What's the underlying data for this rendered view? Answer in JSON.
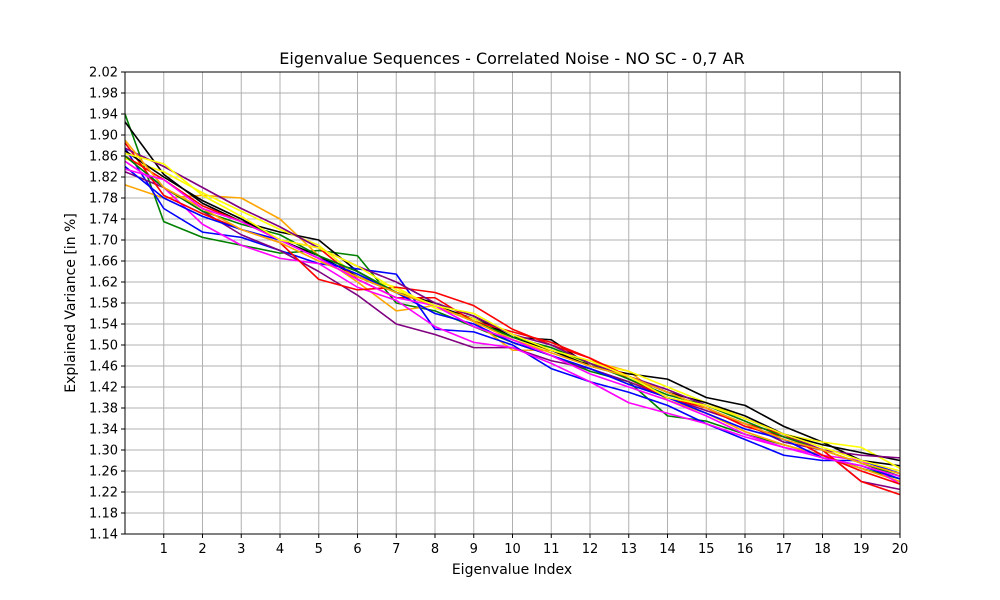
{
  "chart_data": {
    "type": "line",
    "title": "Eigenvalue Sequences - Correlated Noise - NO SC - 0,7 AR",
    "xlabel": "Eigenvalue Index",
    "ylabel": "Explained Variance [in %]",
    "xlim": [
      0,
      20
    ],
    "ylim": [
      1.14,
      2.02
    ],
    "x": [
      0,
      1,
      2,
      3,
      4,
      5,
      6,
      7,
      8,
      9,
      10,
      11,
      12,
      13,
      14,
      15,
      16,
      17,
      18,
      19,
      20
    ],
    "x_tick_labels": [
      "1",
      "2",
      "3",
      "4",
      "5",
      "6",
      "7",
      "8",
      "9",
      "10",
      "11",
      "12",
      "13",
      "14",
      "15",
      "16",
      "17",
      "18",
      "19",
      "20"
    ],
    "y_tick_labels": [
      "1.14",
      "1.18",
      "1.22",
      "1.26",
      "1.30",
      "1.34",
      "1.38",
      "1.42",
      "1.46",
      "1.50",
      "1.54",
      "1.58",
      "1.62",
      "1.66",
      "1.70",
      "1.74",
      "1.78",
      "1.82",
      "1.86",
      "1.90",
      "1.94",
      "1.98",
      "2.02"
    ],
    "grid": true,
    "legend": "none",
    "series": [
      {
        "color": "#008000",
        "values": [
          1.94,
          1.735,
          1.705,
          1.69,
          1.675,
          1.68,
          1.67,
          1.58,
          1.565,
          1.535,
          1.505,
          1.48,
          1.45,
          1.43,
          1.365,
          1.355,
          1.33,
          1.31,
          1.29,
          1.265,
          1.245
        ]
      },
      {
        "color": "#ffa500",
        "values": [
          1.805,
          1.78,
          1.785,
          1.78,
          1.74,
          1.67,
          1.62,
          1.565,
          1.575,
          1.545,
          1.49,
          1.49,
          1.47,
          1.45,
          1.395,
          1.37,
          1.335,
          1.31,
          1.29,
          1.265,
          1.24
        ]
      },
      {
        "color": "#000000",
        "values": [
          1.925,
          1.825,
          1.77,
          1.735,
          1.715,
          1.7,
          1.64,
          1.6,
          1.575,
          1.55,
          1.515,
          1.51,
          1.46,
          1.445,
          1.435,
          1.4,
          1.385,
          1.345,
          1.315,
          1.28,
          1.27
        ]
      },
      {
        "color": "#0000ff",
        "values": [
          1.875,
          1.76,
          1.715,
          1.705,
          1.68,
          1.655,
          1.645,
          1.635,
          1.53,
          1.525,
          1.5,
          1.455,
          1.43,
          1.41,
          1.385,
          1.35,
          1.32,
          1.29,
          1.28,
          1.28,
          1.255
        ]
      },
      {
        "color": "#800080",
        "values": [
          1.83,
          1.8,
          1.755,
          1.71,
          1.68,
          1.64,
          1.595,
          1.54,
          1.52,
          1.495,
          1.495,
          1.47,
          1.455,
          1.43,
          1.4,
          1.375,
          1.35,
          1.315,
          1.3,
          1.24,
          1.225
        ]
      },
      {
        "color": "#ff00ff",
        "values": [
          1.85,
          1.8,
          1.73,
          1.69,
          1.665,
          1.655,
          1.61,
          1.585,
          1.535,
          1.505,
          1.495,
          1.465,
          1.43,
          1.39,
          1.37,
          1.35,
          1.325,
          1.305,
          1.29,
          1.28,
          1.235
        ]
      },
      {
        "color": "#ffff00",
        "values": [
          1.855,
          1.83,
          1.79,
          1.755,
          1.72,
          1.69,
          1.63,
          1.61,
          1.57,
          1.55,
          1.51,
          1.49,
          1.465,
          1.45,
          1.42,
          1.39,
          1.36,
          1.33,
          1.315,
          1.305,
          1.265
        ]
      },
      {
        "color": "#ff0000",
        "values": [
          1.885,
          1.785,
          1.75,
          1.72,
          1.695,
          1.625,
          1.605,
          1.61,
          1.6,
          1.575,
          1.53,
          1.5,
          1.475,
          1.44,
          1.41,
          1.38,
          1.345,
          1.325,
          1.3,
          1.24,
          1.215
        ]
      },
      {
        "color": "#000000",
        "values": [
          1.87,
          1.82,
          1.775,
          1.74,
          1.7,
          1.67,
          1.63,
          1.6,
          1.58,
          1.555,
          1.515,
          1.49,
          1.46,
          1.44,
          1.41,
          1.39,
          1.365,
          1.33,
          1.31,
          1.295,
          1.28
        ]
      },
      {
        "color": "#ff0000",
        "values": [
          1.86,
          1.815,
          1.765,
          1.735,
          1.7,
          1.685,
          1.625,
          1.59,
          1.59,
          1.545,
          1.525,
          1.505,
          1.475,
          1.435,
          1.4,
          1.38,
          1.35,
          1.33,
          1.29,
          1.26,
          1.235
        ]
      },
      {
        "color": "#0000ff",
        "values": [
          1.84,
          1.78,
          1.745,
          1.72,
          1.7,
          1.665,
          1.635,
          1.6,
          1.56,
          1.54,
          1.505,
          1.48,
          1.455,
          1.425,
          1.4,
          1.37,
          1.34,
          1.32,
          1.285,
          1.27,
          1.245
        ]
      },
      {
        "color": "#008000",
        "values": [
          1.86,
          1.8,
          1.755,
          1.73,
          1.71,
          1.67,
          1.64,
          1.6,
          1.575,
          1.545,
          1.515,
          1.495,
          1.465,
          1.435,
          1.405,
          1.385,
          1.355,
          1.325,
          1.3,
          1.275,
          1.25
        ]
      },
      {
        "color": "#800080",
        "values": [
          1.875,
          1.84,
          1.8,
          1.76,
          1.725,
          1.685,
          1.65,
          1.62,
          1.58,
          1.555,
          1.52,
          1.5,
          1.465,
          1.44,
          1.415,
          1.385,
          1.36,
          1.33,
          1.3,
          1.29,
          1.285
        ]
      },
      {
        "color": "#ffa500",
        "values": [
          1.89,
          1.8,
          1.76,
          1.72,
          1.695,
          1.66,
          1.63,
          1.6,
          1.575,
          1.545,
          1.51,
          1.485,
          1.46,
          1.44,
          1.41,
          1.38,
          1.35,
          1.32,
          1.3,
          1.275,
          1.255
        ]
      },
      {
        "color": "#ff00ff",
        "values": [
          1.835,
          1.815,
          1.76,
          1.735,
          1.7,
          1.665,
          1.625,
          1.59,
          1.575,
          1.535,
          1.51,
          1.48,
          1.445,
          1.42,
          1.395,
          1.365,
          1.33,
          1.305,
          1.285,
          1.27,
          1.25
        ]
      },
      {
        "color": "#ffff00",
        "values": [
          1.865,
          1.845,
          1.785,
          1.745,
          1.7,
          1.685,
          1.65,
          1.605,
          1.575,
          1.56,
          1.52,
          1.49,
          1.47,
          1.44,
          1.4,
          1.385,
          1.36,
          1.33,
          1.305,
          1.28,
          1.26
        ]
      }
    ]
  }
}
